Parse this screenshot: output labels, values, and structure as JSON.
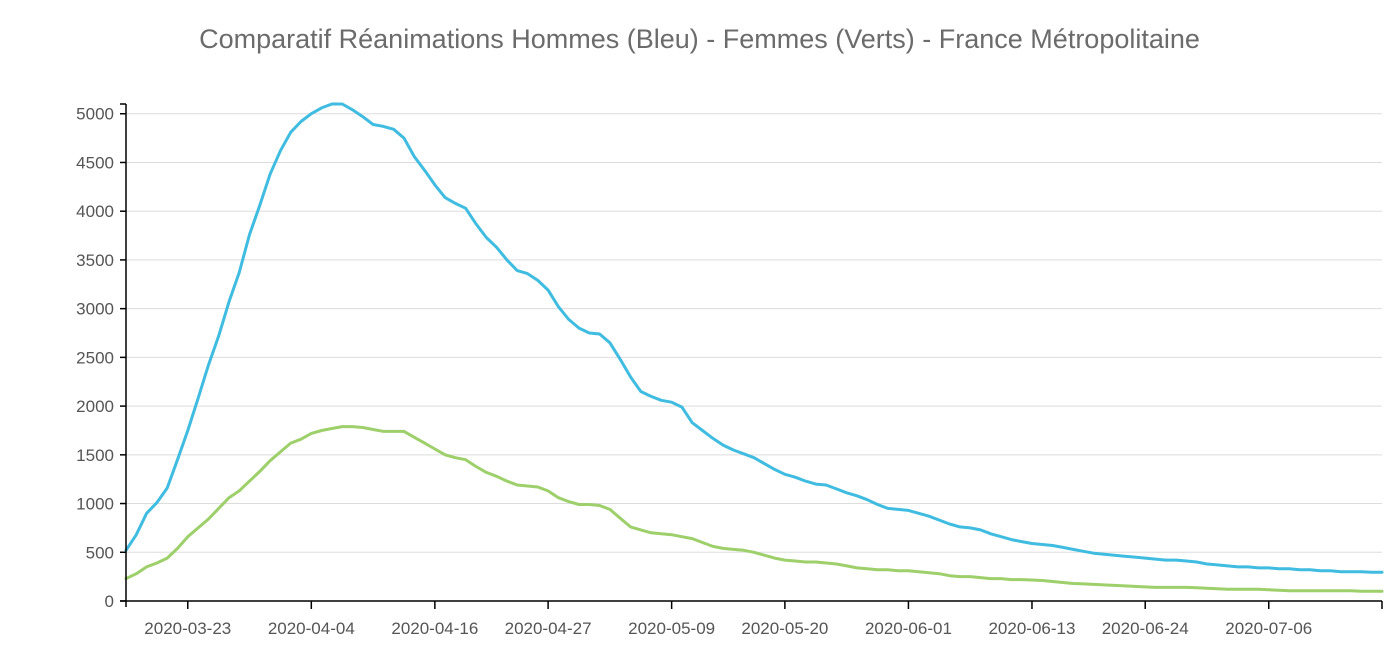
{
  "chart_data": {
    "type": "line",
    "title": "Comparatif Réanimations Hommes (Bleu) - Femmes (Verts) - France Métropolitaine",
    "xlabel": "",
    "ylabel": "",
    "ylim": [
      0,
      5100
    ],
    "yticks": [
      0,
      500,
      1000,
      1500,
      2000,
      2500,
      3000,
      3500,
      4000,
      4500,
      5000
    ],
    "xticks": [
      "2020-03-23",
      "2020-04-04",
      "2020-04-16",
      "2020-04-27",
      "2020-05-09",
      "2020-05-20",
      "2020-06-01",
      "2020-06-13",
      "2020-06-24",
      "2020-07-06"
    ],
    "xlim": [
      "2020-03-17",
      "2020-07-17"
    ],
    "grid": true,
    "series": [
      {
        "name": "Hommes (Bleu)",
        "color": "#3fbce0",
        "points": [
          [
            "2020-03-17",
            520
          ],
          [
            "2020-03-18",
            680
          ],
          [
            "2020-03-19",
            900
          ],
          [
            "2020-03-20",
            1010
          ],
          [
            "2020-03-21",
            1160
          ],
          [
            "2020-03-22",
            1450
          ],
          [
            "2020-03-23",
            1750
          ],
          [
            "2020-03-24",
            2080
          ],
          [
            "2020-03-25",
            2420
          ],
          [
            "2020-03-26",
            2720
          ],
          [
            "2020-03-27",
            3070
          ],
          [
            "2020-03-28",
            3370
          ],
          [
            "2020-03-29",
            3760
          ],
          [
            "2020-03-30",
            4060
          ],
          [
            "2020-03-31",
            4380
          ],
          [
            "2020-04-01",
            4620
          ],
          [
            "2020-04-02",
            4810
          ],
          [
            "2020-04-03",
            4920
          ],
          [
            "2020-04-04",
            5000
          ],
          [
            "2020-04-05",
            5060
          ],
          [
            "2020-04-06",
            5100
          ],
          [
            "2020-04-07",
            5100
          ],
          [
            "2020-04-08",
            5040
          ],
          [
            "2020-04-09",
            4970
          ],
          [
            "2020-04-10",
            4890
          ],
          [
            "2020-04-11",
            4870
          ],
          [
            "2020-04-12",
            4840
          ],
          [
            "2020-04-13",
            4750
          ],
          [
            "2020-04-14",
            4560
          ],
          [
            "2020-04-15",
            4420
          ],
          [
            "2020-04-16",
            4270
          ],
          [
            "2020-04-17",
            4140
          ],
          [
            "2020-04-18",
            4080
          ],
          [
            "2020-04-19",
            4030
          ],
          [
            "2020-04-20",
            3870
          ],
          [
            "2020-04-21",
            3730
          ],
          [
            "2020-04-22",
            3630
          ],
          [
            "2020-04-23",
            3500
          ],
          [
            "2020-04-24",
            3390
          ],
          [
            "2020-04-25",
            3360
          ],
          [
            "2020-04-26",
            3290
          ],
          [
            "2020-04-27",
            3190
          ],
          [
            "2020-04-28",
            3020
          ],
          [
            "2020-04-29",
            2890
          ],
          [
            "2020-04-30",
            2800
          ],
          [
            "2020-05-01",
            2750
          ],
          [
            "2020-05-02",
            2740
          ],
          [
            "2020-05-03",
            2650
          ],
          [
            "2020-05-04",
            2480
          ],
          [
            "2020-05-05",
            2300
          ],
          [
            "2020-05-06",
            2150
          ],
          [
            "2020-05-07",
            2100
          ],
          [
            "2020-05-08",
            2060
          ],
          [
            "2020-05-09",
            2040
          ],
          [
            "2020-05-10",
            1990
          ],
          [
            "2020-05-11",
            1830
          ],
          [
            "2020-05-12",
            1750
          ],
          [
            "2020-05-13",
            1670
          ],
          [
            "2020-05-14",
            1600
          ],
          [
            "2020-05-15",
            1550
          ],
          [
            "2020-05-16",
            1510
          ],
          [
            "2020-05-17",
            1470
          ],
          [
            "2020-05-18",
            1410
          ],
          [
            "2020-05-19",
            1350
          ],
          [
            "2020-05-20",
            1300
          ],
          [
            "2020-05-21",
            1270
          ],
          [
            "2020-05-22",
            1230
          ],
          [
            "2020-05-23",
            1200
          ],
          [
            "2020-05-24",
            1190
          ],
          [
            "2020-05-25",
            1150
          ],
          [
            "2020-05-26",
            1110
          ],
          [
            "2020-05-27",
            1080
          ],
          [
            "2020-05-28",
            1040
          ],
          [
            "2020-05-29",
            990
          ],
          [
            "2020-05-30",
            950
          ],
          [
            "2020-05-31",
            940
          ],
          [
            "2020-06-01",
            930
          ],
          [
            "2020-06-02",
            900
          ],
          [
            "2020-06-03",
            870
          ],
          [
            "2020-06-04",
            830
          ],
          [
            "2020-06-05",
            790
          ],
          [
            "2020-06-06",
            760
          ],
          [
            "2020-06-07",
            750
          ],
          [
            "2020-06-08",
            730
          ],
          [
            "2020-06-09",
            690
          ],
          [
            "2020-06-10",
            660
          ],
          [
            "2020-06-11",
            630
          ],
          [
            "2020-06-12",
            610
          ],
          [
            "2020-06-13",
            590
          ],
          [
            "2020-06-14",
            580
          ],
          [
            "2020-06-15",
            570
          ],
          [
            "2020-06-16",
            550
          ],
          [
            "2020-06-17",
            530
          ],
          [
            "2020-06-18",
            510
          ],
          [
            "2020-06-19",
            490
          ],
          [
            "2020-06-20",
            480
          ],
          [
            "2020-06-21",
            470
          ],
          [
            "2020-06-22",
            460
          ],
          [
            "2020-06-23",
            450
          ],
          [
            "2020-06-24",
            440
          ],
          [
            "2020-06-25",
            430
          ],
          [
            "2020-06-26",
            420
          ],
          [
            "2020-06-27",
            420
          ],
          [
            "2020-06-28",
            410
          ],
          [
            "2020-06-29",
            400
          ],
          [
            "2020-06-30",
            380
          ],
          [
            "2020-07-01",
            370
          ],
          [
            "2020-07-02",
            360
          ],
          [
            "2020-07-03",
            350
          ],
          [
            "2020-07-04",
            350
          ],
          [
            "2020-07-05",
            340
          ],
          [
            "2020-07-06",
            340
          ],
          [
            "2020-07-07",
            330
          ],
          [
            "2020-07-08",
            330
          ],
          [
            "2020-07-09",
            320
          ],
          [
            "2020-07-10",
            320
          ],
          [
            "2020-07-11",
            310
          ],
          [
            "2020-07-12",
            310
          ],
          [
            "2020-07-13",
            300
          ],
          [
            "2020-07-14",
            300
          ],
          [
            "2020-07-15",
            300
          ],
          [
            "2020-07-16",
            295
          ],
          [
            "2020-07-17",
            295
          ]
        ]
      },
      {
        "name": "Femmes (Verts)",
        "color": "#9dcf6a",
        "points": [
          [
            "2020-03-17",
            230
          ],
          [
            "2020-03-18",
            280
          ],
          [
            "2020-03-19",
            350
          ],
          [
            "2020-03-20",
            390
          ],
          [
            "2020-03-21",
            440
          ],
          [
            "2020-03-22",
            540
          ],
          [
            "2020-03-23",
            660
          ],
          [
            "2020-03-24",
            750
          ],
          [
            "2020-03-25",
            840
          ],
          [
            "2020-03-26",
            950
          ],
          [
            "2020-03-27",
            1060
          ],
          [
            "2020-03-28",
            1130
          ],
          [
            "2020-03-29",
            1230
          ],
          [
            "2020-03-30",
            1330
          ],
          [
            "2020-03-31",
            1440
          ],
          [
            "2020-04-01",
            1530
          ],
          [
            "2020-04-02",
            1620
          ],
          [
            "2020-04-03",
            1660
          ],
          [
            "2020-04-04",
            1720
          ],
          [
            "2020-04-05",
            1750
          ],
          [
            "2020-04-06",
            1770
          ],
          [
            "2020-04-07",
            1790
          ],
          [
            "2020-04-08",
            1790
          ],
          [
            "2020-04-09",
            1780
          ],
          [
            "2020-04-10",
            1760
          ],
          [
            "2020-04-11",
            1740
          ],
          [
            "2020-04-12",
            1740
          ],
          [
            "2020-04-13",
            1740
          ],
          [
            "2020-04-14",
            1680
          ],
          [
            "2020-04-15",
            1620
          ],
          [
            "2020-04-16",
            1560
          ],
          [
            "2020-04-17",
            1500
          ],
          [
            "2020-04-18",
            1470
          ],
          [
            "2020-04-19",
            1450
          ],
          [
            "2020-04-20",
            1380
          ],
          [
            "2020-04-21",
            1320
          ],
          [
            "2020-04-22",
            1280
          ],
          [
            "2020-04-23",
            1230
          ],
          [
            "2020-04-24",
            1190
          ],
          [
            "2020-04-25",
            1180
          ],
          [
            "2020-04-26",
            1170
          ],
          [
            "2020-04-27",
            1130
          ],
          [
            "2020-04-28",
            1060
          ],
          [
            "2020-04-29",
            1020
          ],
          [
            "2020-04-30",
            990
          ],
          [
            "2020-05-01",
            990
          ],
          [
            "2020-05-02",
            980
          ],
          [
            "2020-05-03",
            940
          ],
          [
            "2020-05-04",
            850
          ],
          [
            "2020-05-05",
            760
          ],
          [
            "2020-05-06",
            730
          ],
          [
            "2020-05-07",
            700
          ],
          [
            "2020-05-08",
            690
          ],
          [
            "2020-05-09",
            680
          ],
          [
            "2020-05-10",
            660
          ],
          [
            "2020-05-11",
            640
          ],
          [
            "2020-05-12",
            600
          ],
          [
            "2020-05-13",
            560
          ],
          [
            "2020-05-14",
            540
          ],
          [
            "2020-05-15",
            530
          ],
          [
            "2020-05-16",
            520
          ],
          [
            "2020-05-17",
            500
          ],
          [
            "2020-05-18",
            470
          ],
          [
            "2020-05-19",
            440
          ],
          [
            "2020-05-20",
            420
          ],
          [
            "2020-05-21",
            410
          ],
          [
            "2020-05-22",
            400
          ],
          [
            "2020-05-23",
            400
          ],
          [
            "2020-05-24",
            390
          ],
          [
            "2020-05-25",
            380
          ],
          [
            "2020-05-26",
            360
          ],
          [
            "2020-05-27",
            340
          ],
          [
            "2020-05-28",
            330
          ],
          [
            "2020-05-29",
            320
          ],
          [
            "2020-05-30",
            320
          ],
          [
            "2020-05-31",
            310
          ],
          [
            "2020-06-01",
            310
          ],
          [
            "2020-06-02",
            300
          ],
          [
            "2020-06-03",
            290
          ],
          [
            "2020-06-04",
            280
          ],
          [
            "2020-06-05",
            260
          ],
          [
            "2020-06-06",
            250
          ],
          [
            "2020-06-07",
            250
          ],
          [
            "2020-06-08",
            240
          ],
          [
            "2020-06-09",
            230
          ],
          [
            "2020-06-10",
            230
          ],
          [
            "2020-06-11",
            220
          ],
          [
            "2020-06-12",
            220
          ],
          [
            "2020-06-13",
            215
          ],
          [
            "2020-06-14",
            210
          ],
          [
            "2020-06-15",
            200
          ],
          [
            "2020-06-16",
            190
          ],
          [
            "2020-06-17",
            180
          ],
          [
            "2020-06-18",
            175
          ],
          [
            "2020-06-19",
            170
          ],
          [
            "2020-06-20",
            165
          ],
          [
            "2020-06-21",
            160
          ],
          [
            "2020-06-22",
            155
          ],
          [
            "2020-06-23",
            150
          ],
          [
            "2020-06-24",
            145
          ],
          [
            "2020-06-25",
            140
          ],
          [
            "2020-06-26",
            140
          ],
          [
            "2020-06-27",
            140
          ],
          [
            "2020-06-28",
            140
          ],
          [
            "2020-06-29",
            135
          ],
          [
            "2020-06-30",
            130
          ],
          [
            "2020-07-01",
            125
          ],
          [
            "2020-07-02",
            120
          ],
          [
            "2020-07-03",
            120
          ],
          [
            "2020-07-04",
            120
          ],
          [
            "2020-07-05",
            120
          ],
          [
            "2020-07-06",
            115
          ],
          [
            "2020-07-07",
            110
          ],
          [
            "2020-07-08",
            105
          ],
          [
            "2020-07-09",
            105
          ],
          [
            "2020-07-10",
            105
          ],
          [
            "2020-07-11",
            105
          ],
          [
            "2020-07-12",
            105
          ],
          [
            "2020-07-13",
            105
          ],
          [
            "2020-07-14",
            105
          ],
          [
            "2020-07-15",
            100
          ],
          [
            "2020-07-16",
            100
          ],
          [
            "2020-07-17",
            100
          ]
        ]
      }
    ]
  }
}
